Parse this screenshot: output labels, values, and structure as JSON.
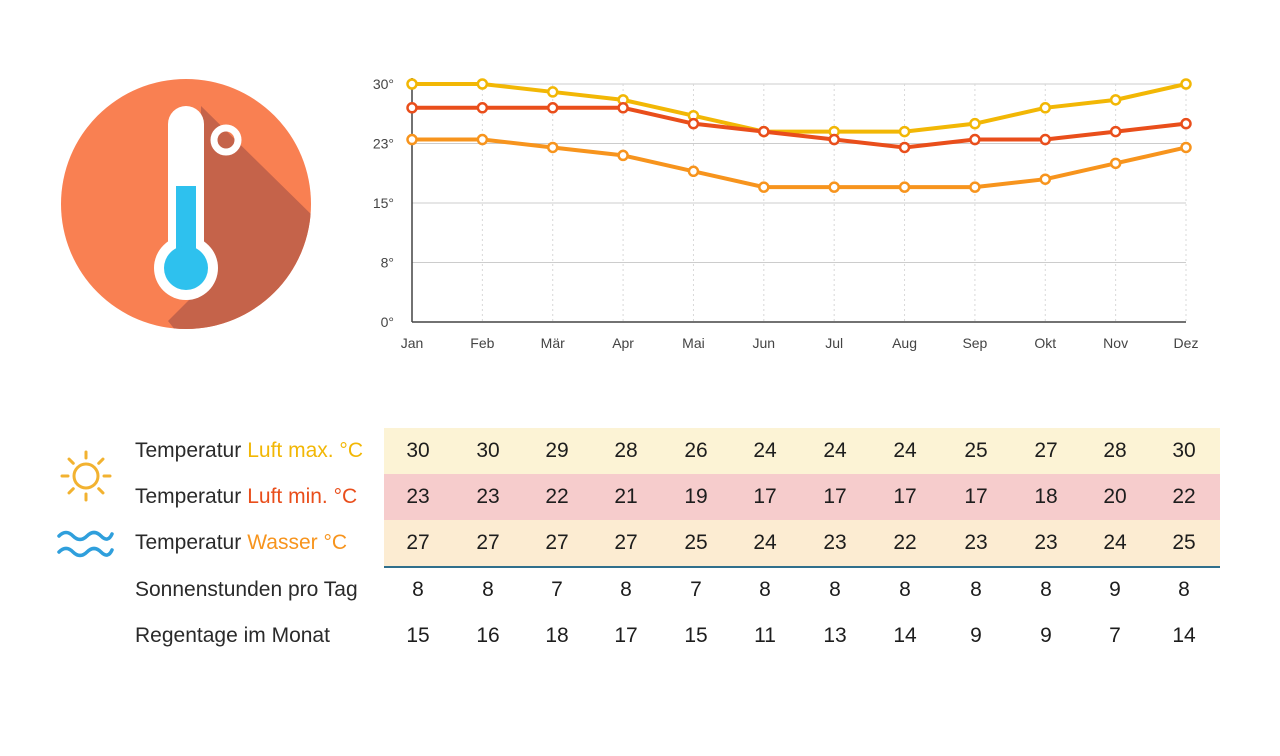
{
  "colors": {
    "luft_max": "#f2b705",
    "luft_min": "#e94e1b",
    "wasser": "#f7941d",
    "row_max_bg": "#fcf3d5",
    "row_min_bg": "#f6cccc",
    "row_wasser_bg": "#fcecd2",
    "divider": "#2f6f8c",
    "circle": "#f98052",
    "circle_shadow": "#c5634a",
    "sun_icon": "#f2b230",
    "wave_icon": "#2f9fdc"
  },
  "icons": {
    "main": "thermometer-icon",
    "row_max": "sun-icon",
    "row_wasser": "waves-icon"
  },
  "chart_data": {
    "type": "line",
    "categories": [
      "Jan",
      "Feb",
      "Mär",
      "Apr",
      "Mai",
      "Jun",
      "Jul",
      "Aug",
      "Sep",
      "Okt",
      "Nov",
      "Dez"
    ],
    "y_ticks": [
      "0°",
      "8°",
      "15°",
      "23°",
      "30°"
    ],
    "ylim": [
      0,
      30
    ],
    "grid": true,
    "series": [
      {
        "key": "luft_max",
        "color": "#f2b705",
        "values": [
          30,
          30,
          29,
          28,
          26,
          24,
          24,
          24,
          25,
          27,
          28,
          30
        ]
      },
      {
        "key": "wasser",
        "color": "#e94e1b",
        "values": [
          27,
          27,
          27,
          27,
          25,
          24,
          23,
          22,
          23,
          23,
          24,
          25
        ]
      },
      {
        "key": "luft_min",
        "color": "#f7941d",
        "values": [
          23,
          23,
          22,
          21,
          19,
          17,
          17,
          17,
          17,
          18,
          20,
          22
        ]
      }
    ]
  },
  "table": {
    "rows": [
      {
        "key": "luft_max",
        "label": "Temperatur",
        "highlight": "Luft max. °C",
        "values": [
          "30",
          "30",
          "29",
          "28",
          "26",
          "24",
          "24",
          "24",
          "25",
          "27",
          "28",
          "30"
        ]
      },
      {
        "key": "luft_min",
        "label": "Temperatur",
        "highlight": "Luft min. °C",
        "values": [
          "23",
          "23",
          "22",
          "21",
          "19",
          "17",
          "17",
          "17",
          "17",
          "18",
          "20",
          "22"
        ]
      },
      {
        "key": "wasser",
        "label": "Temperatur",
        "highlight": "Wasser °C",
        "values": [
          "27",
          "27",
          "27",
          "27",
          "25",
          "24",
          "23",
          "22",
          "23",
          "23",
          "24",
          "25"
        ]
      },
      {
        "key": "sonne",
        "label": "Sonnenstunden pro Tag",
        "highlight": "",
        "values": [
          "8",
          "8",
          "7",
          "8",
          "7",
          "8",
          "8",
          "8",
          "8",
          "8",
          "9",
          "8"
        ]
      },
      {
        "key": "regen",
        "label": "Regentage im Monat",
        "highlight": "",
        "values": [
          "15",
          "16",
          "18",
          "17",
          "15",
          "11",
          "13",
          "14",
          "9",
          "9",
          "7",
          "14"
        ]
      }
    ]
  }
}
